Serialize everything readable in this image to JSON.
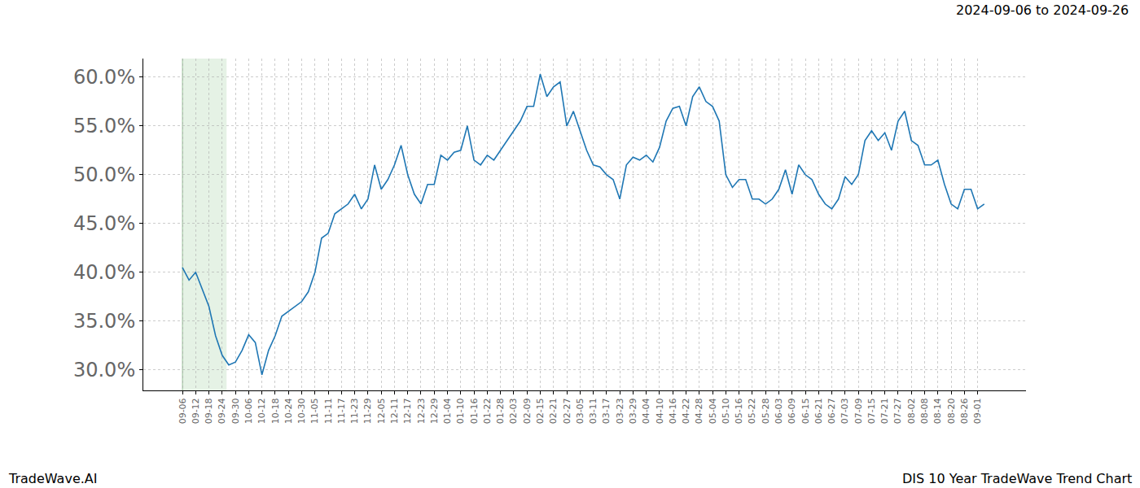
{
  "chart_data": {
    "type": "line",
    "title": "DIS 10 Year TradeWave Trend Chart",
    "subtitle": "2024-09-06 to 2024-09-26",
    "annotations": [
      "TradeWave.AI"
    ],
    "categories": [
      "09-06",
      null,
      "09-12",
      null,
      "09-18",
      null,
      "09-24",
      null,
      "09-30",
      null,
      "10-06",
      null,
      "10-12",
      null,
      "10-18",
      null,
      "10-24",
      null,
      "10-30",
      null,
      "11-05",
      null,
      "11-11",
      null,
      "11-17",
      null,
      "11-23",
      null,
      "11-29",
      null,
      "12-05",
      null,
      "12-11",
      null,
      "12-17",
      null,
      "12-23",
      null,
      "12-29",
      null,
      "01-04",
      null,
      "01-10",
      null,
      "01-16",
      null,
      "01-22",
      null,
      "01-28",
      null,
      "02-03",
      null,
      "02-09",
      null,
      "02-15",
      null,
      "02-21",
      null,
      "02-27",
      null,
      "03-05",
      null,
      "03-11",
      null,
      "03-17",
      null,
      "03-23",
      null,
      "03-29",
      null,
      "04-04",
      null,
      "04-10",
      null,
      "04-16",
      null,
      "04-22",
      null,
      "04-28",
      null,
      "05-04",
      null,
      "05-10",
      null,
      "05-16",
      null,
      "05-22",
      null,
      "05-28",
      null,
      "06-03",
      null,
      "06-09",
      null,
      "06-15",
      null,
      "06-21",
      null,
      "06-27",
      null,
      "07-03",
      null,
      "07-09",
      null,
      "07-15",
      null,
      "07-21",
      null,
      "07-27",
      null,
      "08-02",
      null,
      "08-08",
      null,
      "08-14",
      null,
      "08-20",
      null,
      "08-26",
      null,
      "09-01",
      null
    ],
    "values": [
      40.5,
      39.2,
      40.0,
      38.3,
      36.5,
      33.5,
      31.5,
      30.5,
      30.8,
      32.0,
      33.6,
      32.8,
      29.5,
      32.0,
      33.5,
      35.5,
      36.0,
      36.5,
      37.0,
      38.0,
      40.0,
      43.5,
      44.0,
      46.0,
      46.5,
      47.0,
      48.0,
      46.5,
      47.5,
      51.0,
      48.5,
      49.5,
      51.0,
      53.0,
      50.0,
      48.0,
      47.0,
      49.0,
      49.0,
      52.0,
      51.5,
      52.3,
      52.5,
      55.0,
      51.5,
      51.0,
      52.0,
      51.5,
      52.5,
      53.5,
      54.5,
      55.5,
      57.0,
      57.0,
      60.3,
      58.0,
      59.0,
      59.5,
      55.0,
      56.5,
      54.5,
      52.5,
      51.0,
      50.8,
      50.0,
      49.5,
      47.5,
      51.0,
      51.8,
      51.5,
      52.0,
      51.3,
      52.8,
      55.5,
      56.8,
      57.0,
      55.0,
      58.0,
      59.0,
      57.5,
      57.0,
      55.5,
      50.0,
      48.7,
      49.5,
      49.5,
      47.5,
      47.5,
      47.0,
      47.5,
      48.5,
      50.5,
      48.0,
      51.0,
      50.0,
      49.5,
      48.0,
      47.0,
      46.5,
      47.5,
      49.8,
      49.0,
      50.0,
      53.5,
      54.5,
      53.5,
      54.3,
      52.5,
      55.5,
      56.5,
      53.5,
      53.0,
      51.0,
      51.0,
      51.5,
      49.0,
      47.0,
      46.5,
      48.5,
      48.5,
      46.5,
      47.0
    ],
    "color": "#1f77b4",
    "highlight": [
      0,
      6.67
    ],
    "xlim": [
      -5.9,
      127.3
    ],
    "ylim": [
      27.9,
      61.9
    ],
    "yticks": [
      {
        "value": 30,
        "label": "30.0%"
      },
      {
        "value": 35,
        "label": "35.0%"
      },
      {
        "value": 40,
        "label": "40.0%"
      },
      {
        "value": 45,
        "label": "45.0%"
      },
      {
        "value": 50,
        "label": "50.0%"
      },
      {
        "value": 55,
        "label": "55.0%"
      },
      {
        "value": 60,
        "label": "60.0%"
      }
    ],
    "grid": true
  }
}
